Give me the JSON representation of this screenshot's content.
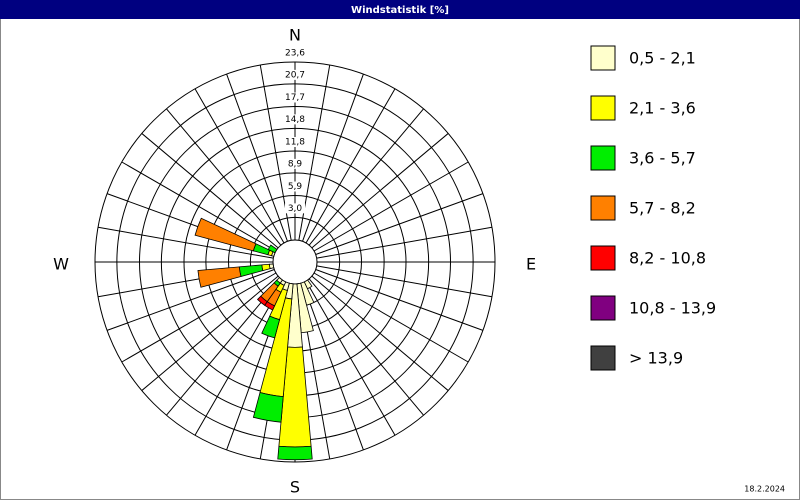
{
  "chart_data": {
    "type": "windrose",
    "title": "Windstatistik [%]",
    "date": "18.2.2024",
    "direction_labels": [
      "N",
      "E",
      "S",
      "W"
    ],
    "x": [
      0,
      10,
      20,
      30,
      40,
      50,
      60,
      70,
      80,
      90,
      100,
      110,
      120,
      130,
      140,
      150,
      160,
      170,
      180,
      190,
      200,
      210,
      220,
      230,
      240,
      250,
      260,
      270,
      280,
      290,
      300,
      310,
      320,
      330,
      340,
      350
    ],
    "ylim": [
      0,
      23.6
    ],
    "yticks": [
      {
        "value": 3.0,
        "label": "3,0"
      },
      {
        "value": 5.9,
        "label": "5,9"
      },
      {
        "value": 8.9,
        "label": "8,9"
      },
      {
        "value": 11.8,
        "label": "11,8"
      },
      {
        "value": 14.8,
        "label": "14,8"
      },
      {
        "value": 17.7,
        "label": "17,7"
      },
      {
        "value": 20.7,
        "label": "20,7"
      },
      {
        "value": 23.6,
        "label": "23,6"
      }
    ],
    "series": [
      {
        "name": "0,5 - 2,1",
        "color": "#ffffcc",
        "values": [
          0,
          0,
          0,
          0,
          0,
          0,
          0,
          0,
          0,
          0,
          0,
          0,
          0,
          0,
          0,
          1,
          3,
          6.5,
          8.4,
          2,
          1,
          0.5,
          0.5,
          0,
          0,
          0,
          0.5,
          0,
          0,
          0.3,
          0,
          0,
          0,
          0,
          0,
          0
        ]
      },
      {
        "name": "2,1 - 3,6",
        "color": "#ffff00",
        "values": [
          0,
          0,
          0,
          0,
          0,
          0,
          0,
          0,
          0,
          0,
          0,
          0,
          0,
          0,
          0,
          0,
          0,
          0,
          13.2,
          13,
          4,
          1,
          0,
          0,
          0,
          0,
          1,
          0,
          0,
          0.5,
          0,
          0,
          0,
          0,
          0,
          0
        ]
      },
      {
        "name": "3,6 - 5,7",
        "color": "#00ee00",
        "values": [
          0,
          0,
          0,
          0,
          0,
          0,
          0,
          0,
          0,
          0,
          0,
          0,
          0,
          0,
          0,
          0,
          0,
          0,
          1.7,
          3.4,
          2.5,
          0,
          0.5,
          0,
          0,
          0,
          3,
          0,
          0,
          2,
          1,
          0,
          0,
          0,
          0,
          0
        ]
      },
      {
        "name": "5,7 - 8,2",
        "color": "#ff8000",
        "values": [
          0,
          0,
          0,
          0,
          0,
          0,
          0,
          0,
          0,
          0,
          0,
          0,
          0,
          0,
          0,
          0,
          0,
          0,
          0,
          0,
          0,
          2,
          2.5,
          0,
          0,
          0,
          5.5,
          0,
          0,
          8,
          0,
          0,
          0,
          0,
          0,
          0
        ]
      },
      {
        "name": "8,2 - 10,8",
        "color": "#ff0000",
        "values": [
          0,
          0,
          0,
          0,
          0,
          0,
          0,
          0,
          0,
          0,
          0,
          0,
          0,
          0,
          0,
          0,
          0,
          0,
          0,
          0,
          0,
          0.6,
          0.6,
          0,
          0,
          0,
          0,
          0,
          0,
          0,
          0,
          0,
          0,
          0,
          0,
          0
        ]
      },
      {
        "name": "10,8 - 13,9",
        "color": "#800080",
        "values": [
          0,
          0,
          0,
          0,
          0,
          0,
          0,
          0,
          0,
          0,
          0,
          0,
          0,
          0,
          0,
          0,
          0,
          0,
          0,
          0,
          0,
          0,
          0,
          0,
          0,
          0,
          0,
          0,
          0,
          0,
          0,
          0,
          0,
          0,
          0,
          0
        ]
      },
      {
        "name": "> 13,9",
        "color": "#404040",
        "values": [
          0,
          0,
          0,
          0,
          0,
          0,
          0,
          0,
          0,
          0,
          0,
          0,
          0,
          0,
          0,
          0,
          0,
          0,
          0,
          0,
          0,
          0,
          0,
          0,
          0,
          0,
          0,
          0,
          0,
          0,
          0,
          0,
          0,
          0,
          0,
          0
        ]
      }
    ]
  }
}
